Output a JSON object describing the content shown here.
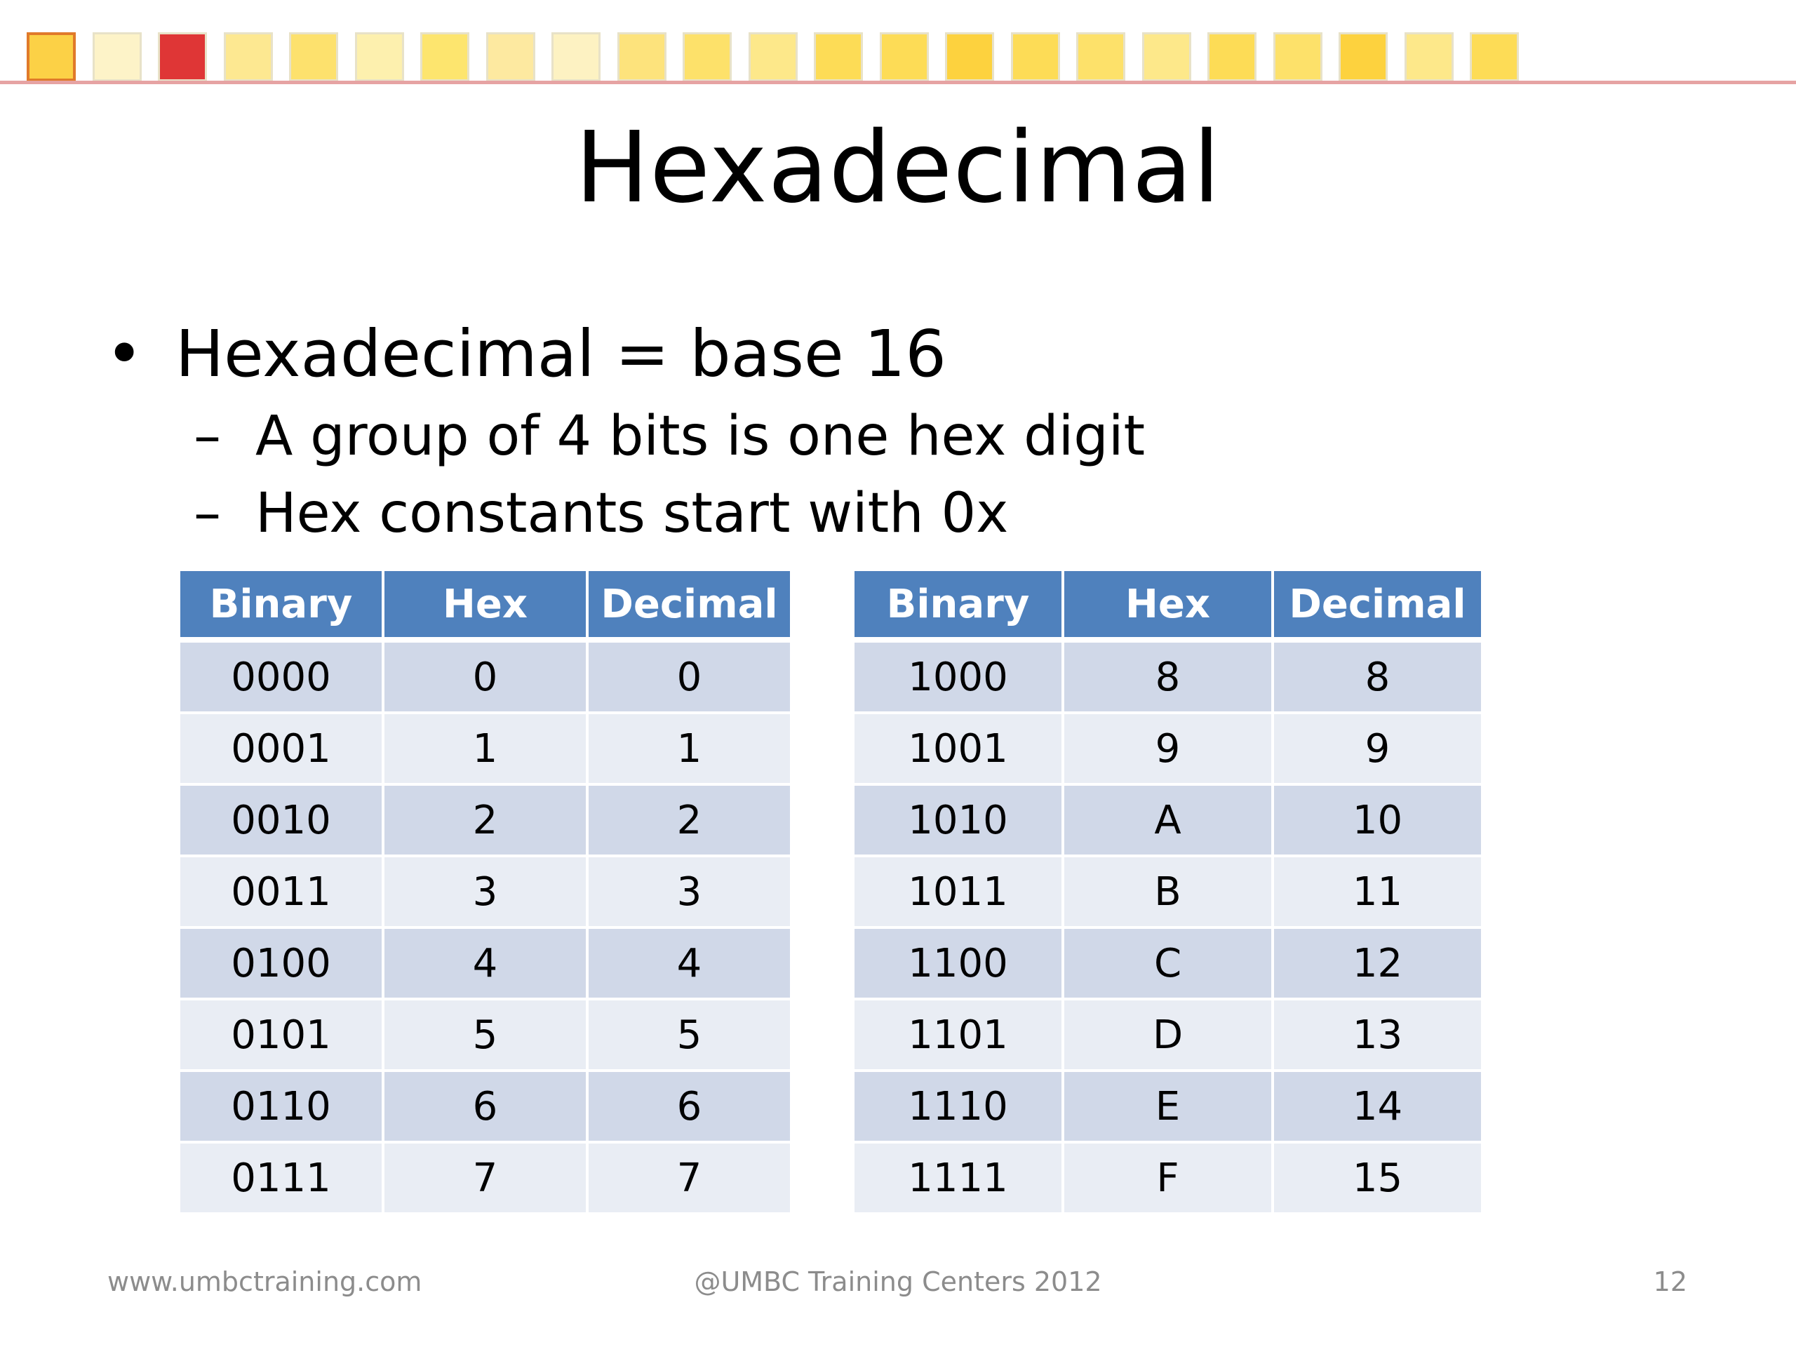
{
  "decoration": {
    "square_colors": [
      "#fcd146",
      "#fdf3c8",
      "#df3636",
      "#fde891",
      "#fde16d",
      "#fdf0ae",
      "#fde56e",
      "#fde9a0",
      "#fdf2c2",
      "#fde37c",
      "#fde16a",
      "#fde88a",
      "#fddc56",
      "#fddc56",
      "#fdd23e",
      "#fddc56",
      "#fde16a",
      "#fde88a",
      "#fddc56",
      "#fde16a",
      "#fdd23e",
      "#fde88a",
      "#fddc56"
    ],
    "selected_index": 0,
    "rule_color": "#e6a3a3"
  },
  "slide": {
    "title": "Hexadecimal",
    "bullet": "Hexadecimal = base 16",
    "subbullets": [
      "A group of 4 bits is one hex digit",
      "Hex constants start with 0x"
    ]
  },
  "tables": {
    "left": {
      "headers": [
        "Binary",
        "Hex",
        "Decimal"
      ],
      "rows": [
        [
          "0000",
          "0",
          "0"
        ],
        [
          "0001",
          "1",
          "1"
        ],
        [
          "0010",
          "2",
          "2"
        ],
        [
          "0011",
          "3",
          "3"
        ],
        [
          "0100",
          "4",
          "4"
        ],
        [
          "0101",
          "5",
          "5"
        ],
        [
          "0110",
          "6",
          "6"
        ],
        [
          "0111",
          "7",
          "7"
        ]
      ]
    },
    "right": {
      "headers": [
        "Binary",
        "Hex",
        "Decimal"
      ],
      "rows": [
        [
          "1000",
          "8",
          "8"
        ],
        [
          "1001",
          "9",
          "9"
        ],
        [
          "1010",
          "A",
          "10"
        ],
        [
          "1011",
          "B",
          "11"
        ],
        [
          "1100",
          "C",
          "12"
        ],
        [
          "1101",
          "D",
          "13"
        ],
        [
          "1110",
          "E",
          "14"
        ],
        [
          "1111",
          "F",
          "15"
        ]
      ]
    },
    "header_color": "#4f81bd",
    "row_colors": [
      "#d0d8e8",
      "#e9edf4"
    ]
  },
  "footer": {
    "website": "www.umbctraining.com",
    "copyright": "@UMBC Training Centers 2012",
    "page_number": "12"
  }
}
